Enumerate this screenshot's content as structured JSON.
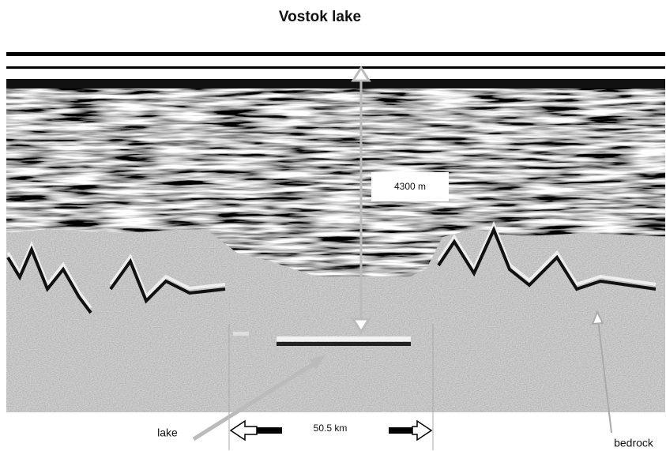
{
  "header": {
    "title": "Vostok lake"
  },
  "annotations": {
    "thickness": "4300 m",
    "lake": "lake",
    "width": "50.5 km",
    "bedrock": "bedrock"
  }
}
